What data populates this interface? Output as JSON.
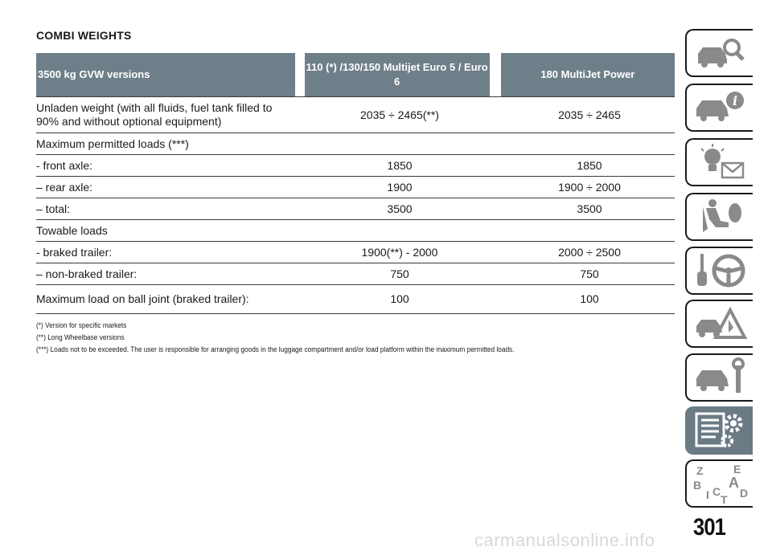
{
  "page": {
    "title": "COMBI WEIGHTS",
    "number": "301"
  },
  "table": {
    "headers": [
      "3500 kg GVW versions",
      "110 (*) /130/150 Multijet Euro 5 / Euro 6",
      "180 MultiJet Power"
    ],
    "rows": [
      [
        "Unladen weight (with all fluids, fuel tank filled to 90% and without optional equipment)",
        "2035 ÷ 2465(**)",
        "2035 ÷ 2465"
      ],
      [
        "Maximum permitted loads (***)",
        "",
        ""
      ],
      [
        "- front axle:",
        "1850",
        "1850"
      ],
      [
        "– rear axle:",
        "1900",
        "1900 ÷ 2000"
      ],
      [
        "– total:",
        "3500",
        "3500"
      ],
      [
        "Towable loads",
        "",
        ""
      ],
      [
        "- braked trailer:",
        "1900(**) - 2000",
        "2000 ÷ 2500"
      ],
      [
        "– non-braked trailer:",
        "750",
        "750"
      ],
      [
        "Maximum load on ball joint (braked trailer):",
        "100",
        "100"
      ]
    ]
  },
  "footnotes": [
    "(*) Version for specific markets",
    "(**) Long Wheelbase versions",
    "(***) Loads not to be exceeded. The user is responsible for arranging goods in the luggage compartment and/or load platform within the maximum permitted loads."
  ],
  "side_tabs": [
    {
      "icon": "car-search-icon",
      "active": false
    },
    {
      "icon": "car-info-icon",
      "active": false
    },
    {
      "icon": "warning-lights-message-icon",
      "active": false
    },
    {
      "icon": "seat-airbag-icon",
      "active": false
    },
    {
      "icon": "key-steering-wheel-icon",
      "active": false
    },
    {
      "icon": "car-warning-triangle-icon",
      "active": false
    },
    {
      "icon": "car-wrench-icon",
      "active": false
    },
    {
      "icon": "specs-gears-icon",
      "active": true
    },
    {
      "icon": "alphabet-index-icon",
      "active": false
    }
  ],
  "side_index_letters": [
    "Z",
    "E",
    "B",
    "A",
    "I",
    "C",
    "D",
    "T"
  ],
  "colors": {
    "header_bg": "#6f7f89",
    "active_tab_bg": "#6b7b84"
  },
  "watermark": "carmanualsonline.info"
}
